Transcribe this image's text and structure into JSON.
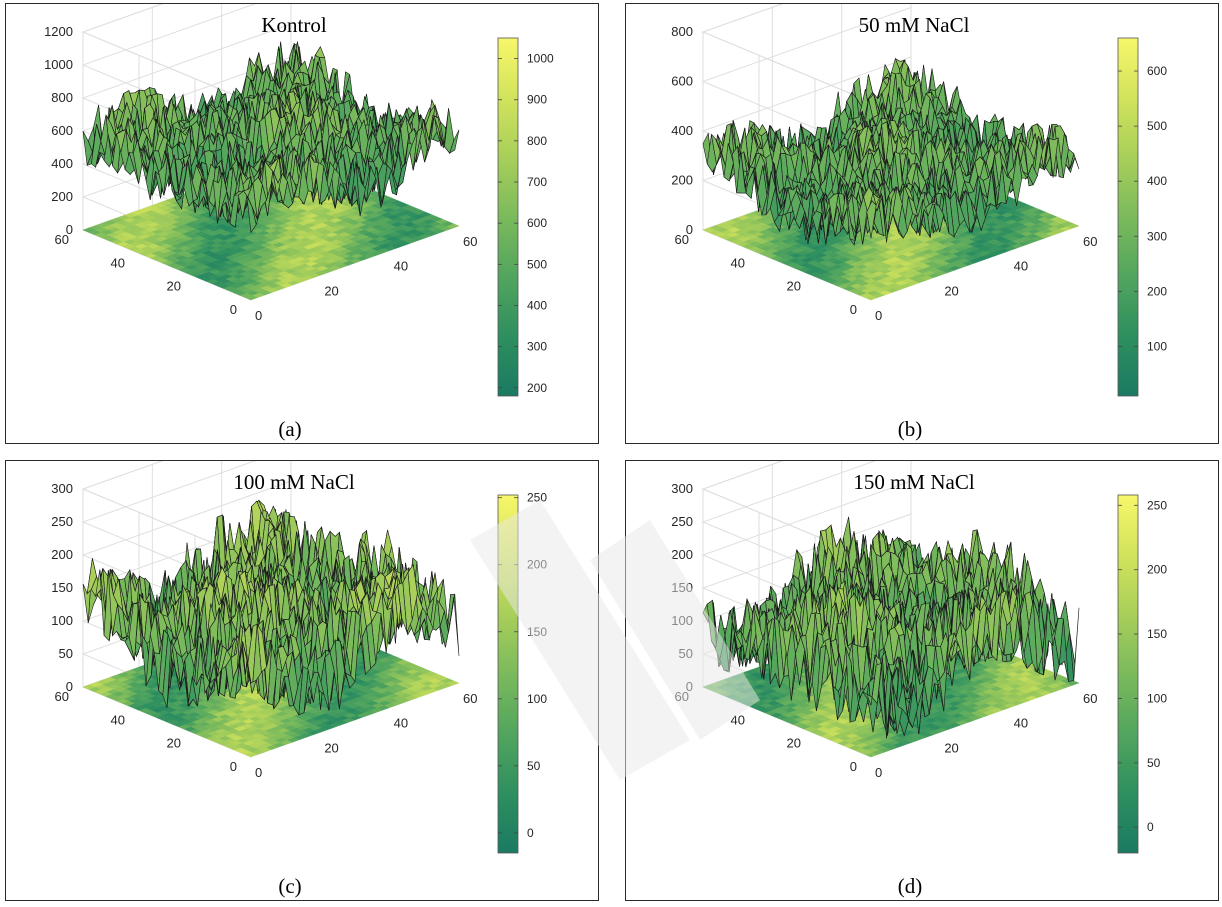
{
  "colormap": [
    "#1a7a62",
    "#2e8f5f",
    "#52a55e",
    "#7bba5c",
    "#a8cf5a",
    "#d2e35c",
    "#f7f76a"
  ],
  "chart_data": [
    {
      "type": "surface",
      "title": "Kontrol",
      "label": "(a)",
      "x_ticks": [
        "0",
        "20",
        "40",
        "60"
      ],
      "y_ticks": [
        "0",
        "20",
        "40",
        "60"
      ],
      "z_ticks": [
        "0",
        "200",
        "400",
        "600",
        "800",
        "1000",
        "1200"
      ],
      "zlim": [
        0,
        1200
      ],
      "colorbar_ticks": [
        "200",
        "300",
        "400",
        "500",
        "600",
        "700",
        "800",
        "900",
        "1000"
      ],
      "clim": [
        180,
        1050
      ],
      "surface_mean": 520,
      "surface_amp": 260
    },
    {
      "type": "surface",
      "title": "50 mM NaCl",
      "label": "(b)",
      "x_ticks": [
        "0",
        "20",
        "40",
        "60"
      ],
      "y_ticks": [
        "0",
        "20",
        "40",
        "60"
      ],
      "z_ticks": [
        "0",
        "200",
        "400",
        "600",
        "800"
      ],
      "zlim": [
        0,
        800
      ],
      "colorbar_ticks": [
        "100",
        "200",
        "300",
        "400",
        "500",
        "600"
      ],
      "clim": [
        10,
        660
      ],
      "surface_mean": 260,
      "surface_amp": 170
    },
    {
      "type": "surface",
      "title": "100 mM NaCl",
      "label": "(c)",
      "x_ticks": [
        "0",
        "20",
        "40",
        "60"
      ],
      "y_ticks": [
        "0",
        "20",
        "40",
        "60"
      ],
      "z_ticks": [
        "0",
        "50",
        "100",
        "150",
        "200",
        "250",
        "300"
      ],
      "zlim": [
        0,
        300
      ],
      "colorbar_ticks": [
        "0",
        "50",
        "100",
        "150",
        "200",
        "250"
      ],
      "clim": [
        -15,
        252
      ],
      "surface_mean": 110,
      "surface_amp": 95
    },
    {
      "type": "surface",
      "title": "150 mM NaCl",
      "label": "(d)",
      "x_ticks": [
        "0",
        "20",
        "40",
        "60"
      ],
      "y_ticks": [
        "0",
        "20",
        "40",
        "60"
      ],
      "z_ticks": [
        "0",
        "50",
        "100",
        "150",
        "200",
        "250",
        "300"
      ],
      "zlim": [
        0,
        300
      ],
      "colorbar_ticks": [
        "0",
        "50",
        "100",
        "150",
        "200",
        "250"
      ],
      "clim": [
        -20,
        258
      ],
      "surface_mean": 95,
      "surface_amp": 95
    }
  ]
}
